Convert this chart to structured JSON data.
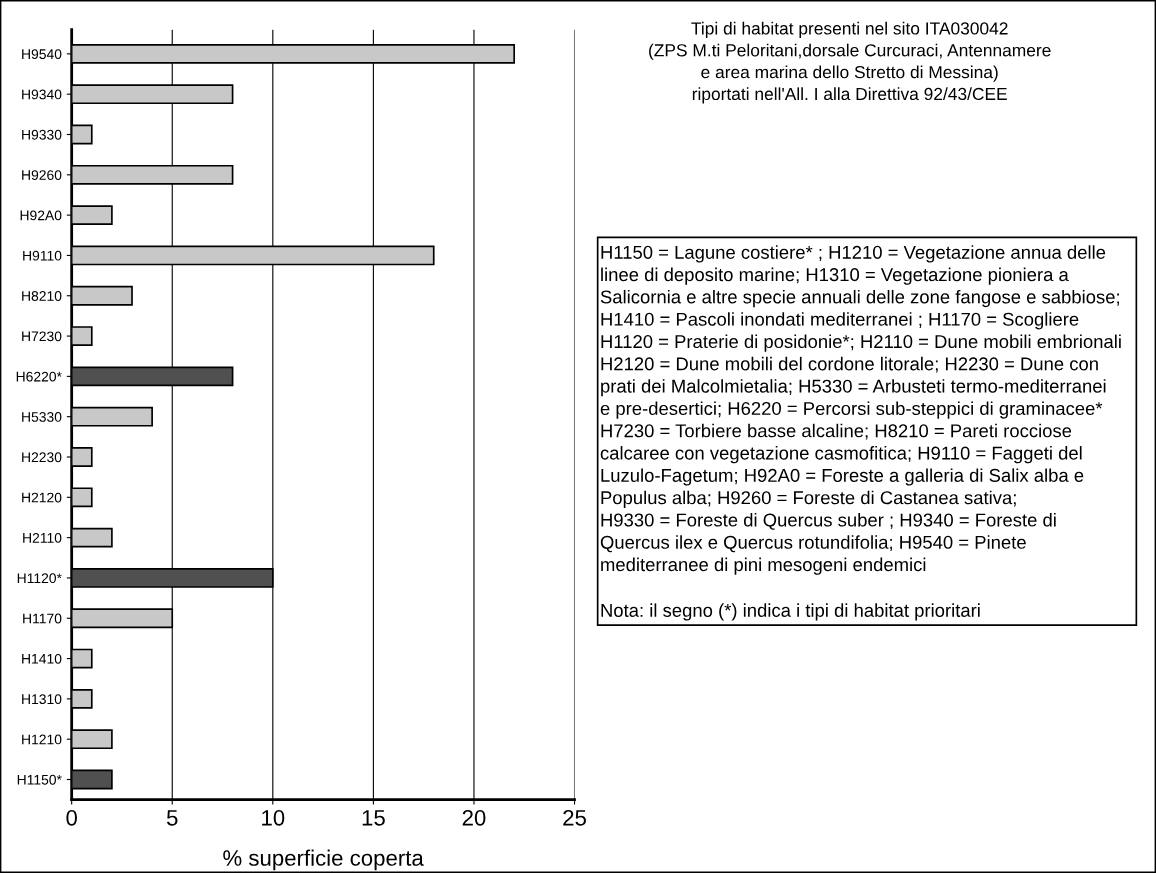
{
  "chart_data": {
    "type": "bar",
    "orientation": "horizontal",
    "title": "Tipi di habitat presenti nel sito ITA030042\n(ZPS M.ti Peloritani,dorsale Curcuraci, Antennamere\ne area marina dello Stretto di Messina)\nriportati nell'All. I alla Direttiva 92/43/CEE",
    "xlabel": "% superficie coperta",
    "categories": [
      "H9540",
      "H9340",
      "H9330",
      "H9260",
      "H92A0",
      "H9110",
      "H8210",
      "H7230",
      "H6220*",
      "H5330",
      "H2230",
      "H2120",
      "H2110",
      "H1120*",
      "H1170",
      "H1410",
      "H1310",
      "H1210",
      "H1150*"
    ],
    "values": [
      22,
      8,
      1,
      8,
      2,
      18,
      3,
      1,
      8,
      4,
      1,
      1,
      2,
      10,
      5,
      1,
      1,
      2,
      2
    ],
    "colors": [
      "#c8c8c8",
      "#c8c8c8",
      "#c8c8c8",
      "#c8c8c8",
      "#c8c8c8",
      "#c8c8c8",
      "#c8c8c8",
      "#c8c8c8",
      "#505050",
      "#c8c8c8",
      "#c8c8c8",
      "#c8c8c8",
      "#c8c8c8",
      "#505050",
      "#c8c8c8",
      "#c8c8c8",
      "#c8c8c8",
      "#c8c8c8",
      "#505050"
    ],
    "xlim": [
      0,
      25
    ],
    "xticks": [
      0,
      5,
      10,
      15,
      20,
      25
    ],
    "grid": "x",
    "legend": false,
    "annotations": [
      "H1150 = Lagune costiere* ; H1210 = Vegetazione annua delle\nlinee di deposito marine; H1310 = Vegetazione pioniera a\nSalicornia e altre specie annuali delle zone fangose e sabbiose;\nH1410 = Pascoli inondati mediterranei ; H1170 = Scogliere\nH1120 = Praterie di posidonie*; H2110 = Dune mobili embrionali\nH2120 = Dune mobili del cordone litorale; H2230 = Dune con\nprati dei Malcolmietalia; H5330 = Arbusteti termo-mediterranei\ne pre-desertici; H6220 = Percorsi sub-steppici di graminacee*\nH7230 = Torbiere basse alcaline; H8210 = Pareti rocciose\ncalcaree con vegetazione casmofitica; H9110 = Faggeti del\nLuzulo-Fagetum; H92A0 = Foreste a galleria di Salix alba e\nPopulus alba; H9260 = Foreste di Castanea sativa;\nH9330 = Foreste di Quercus suber ; H9340 = Foreste di\nQuercus ilex e Quercus rotundifolia; H9540 = Pinete\nmediterranee di pini mesogeni endemici",
      "Nota: il segno (*) indica i tipi di habitat prioritari"
    ]
  }
}
